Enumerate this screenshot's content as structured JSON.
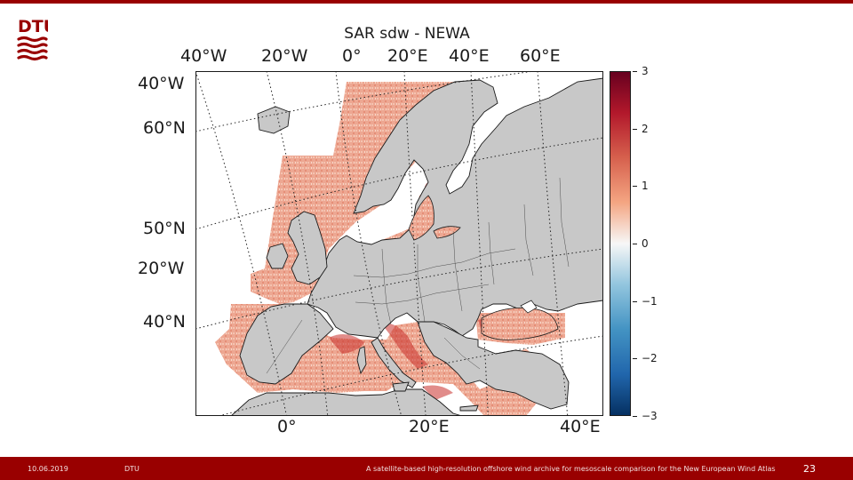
{
  "slide": {
    "logo_text": "DTU",
    "footer": {
      "date": "10.06.2019",
      "org": "DTU",
      "caption": "A satellite-based high-resolution offshore wind archive for mesoscale comparison for the New European Wind Atlas",
      "page": "23"
    },
    "colors": {
      "accent": "#990000",
      "land": "#c8c8c8",
      "footer_bg": "#990000"
    }
  },
  "chart_data": {
    "type": "heatmap",
    "title": "SAR sdw - NEWA",
    "top_longitude_labels": [
      "40°W",
      "20°W",
      "0°",
      "20°E",
      "40°E",
      "60°E"
    ],
    "bottom_longitude_labels": [
      "0°",
      "20°E",
      "40°E"
    ],
    "left_labels": [
      "40°W",
      "60°N",
      "50°N",
      "20°W",
      "40°N"
    ],
    "colorbar": {
      "ticks": [
        "3",
        "2",
        "1",
        "0",
        "−1",
        "−2",
        "−3"
      ],
      "range": [
        -3,
        3
      ],
      "colormap": "RdBu_r"
    },
    "grid": true
  }
}
